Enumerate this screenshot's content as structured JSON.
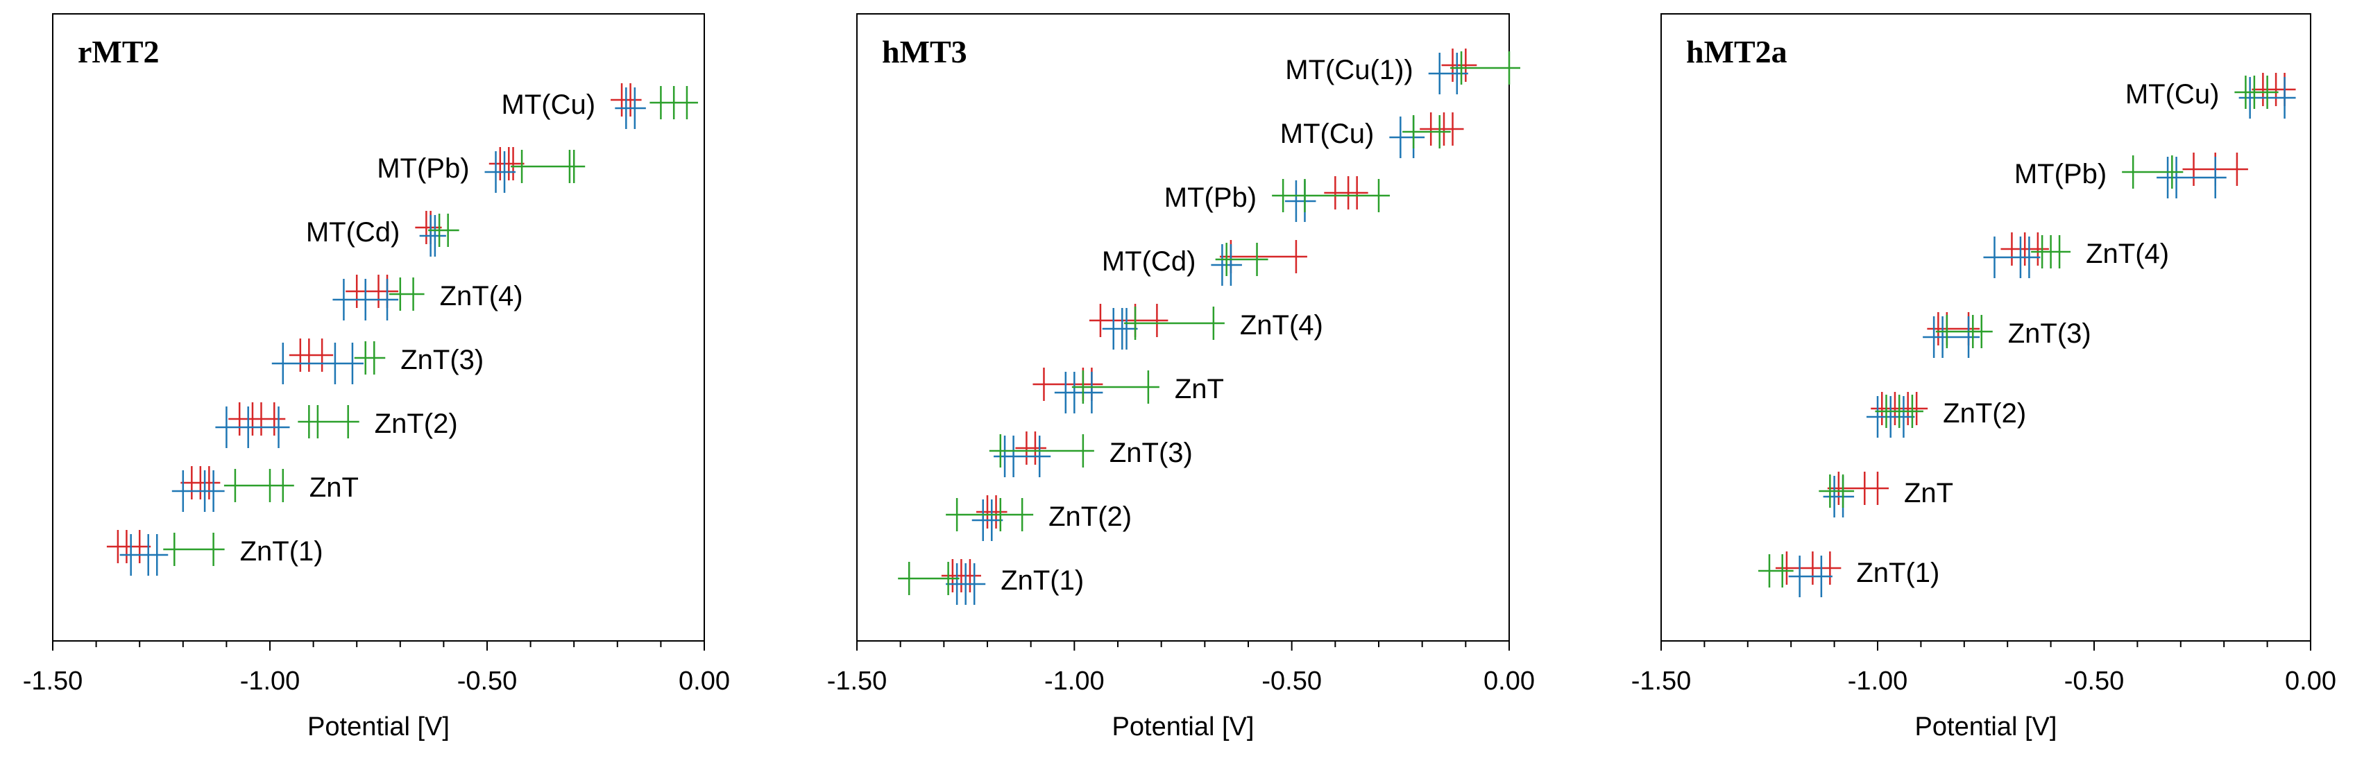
{
  "colors": {
    "red": "#d62728",
    "blue": "#1f77b4",
    "green": "#2ca02c",
    "frame": "#000000"
  },
  "chart_data": [
    {
      "type": "scatter",
      "title": "rMT2",
      "xlabel": "Potential [V]",
      "xlim": [
        -1.5,
        0
      ],
      "xticks": [
        "-1.50",
        "-1.00",
        "-0.50",
        "0.00"
      ],
      "legend": "none",
      "groups": [
        {
          "label": "MT(Cu)",
          "red": [
            -0.19,
            -0.17
          ],
          "blue": [
            -0.18,
            -0.16
          ],
          "green": [
            -0.1,
            -0.07,
            -0.04
          ]
        },
        {
          "label": "MT(Pb)",
          "red": [
            -0.47,
            -0.45,
            -0.44
          ],
          "blue": [
            -0.48,
            -0.46
          ],
          "green": [
            -0.42,
            -0.31,
            -0.3
          ]
        },
        {
          "label": "MT(Cd)",
          "red": [
            -0.64,
            -0.63
          ],
          "blue": [
            -0.63,
            -0.62
          ],
          "green": [
            -0.61,
            -0.59
          ]
        },
        {
          "label": "ZnT(4)",
          "red": [
            -0.8,
            -0.75,
            -0.73
          ],
          "blue": [
            -0.83,
            -0.78,
            -0.73
          ],
          "green": [
            -0.7,
            -0.67
          ]
        },
        {
          "label": "ZnT(3)",
          "red": [
            -0.93,
            -0.91,
            -0.88
          ],
          "blue": [
            -0.97,
            -0.85,
            -0.81
          ],
          "green": [
            -0.78,
            -0.76
          ]
        },
        {
          "label": "ZnT(2)",
          "red": [
            -1.07,
            -1.04,
            -1.02,
            -0.99
          ],
          "blue": [
            -1.1,
            -1.05,
            -0.98
          ],
          "green": [
            -0.91,
            -0.89,
            -0.82
          ]
        },
        {
          "label": "ZnT",
          "red": [
            -1.18,
            -1.16,
            -1.14
          ],
          "blue": [
            -1.2,
            -1.15,
            -1.13
          ],
          "green": [
            -1.08,
            -1.0,
            -0.97
          ]
        },
        {
          "label": "ZnT(1)",
          "red": [
            -1.35,
            -1.33,
            -1.3
          ],
          "blue": [
            -1.32,
            -1.28,
            -1.26
          ],
          "green": [
            -1.22,
            -1.13
          ]
        }
      ]
    },
    {
      "type": "scatter",
      "title": "hMT3",
      "xlabel": "Potential [V]",
      "xlim": [
        -1.5,
        0
      ],
      "xticks": [
        "-1.50",
        "-1.00",
        "-0.50",
        "0.00"
      ],
      "legend": "none",
      "groups": [
        {
          "label": "MT(Cu(1))",
          "red": [
            -0.13,
            -0.1
          ],
          "blue": [
            -0.16,
            -0.12
          ],
          "green": [
            -0.11,
            -0.0
          ]
        },
        {
          "label": "MT(Cu)",
          "red": [
            -0.18,
            -0.15,
            -0.13
          ],
          "blue": [
            -0.25,
            -0.22
          ],
          "green": [
            -0.22,
            -0.16
          ]
        },
        {
          "label": "MT(Pb)",
          "red": [
            -0.4,
            -0.37,
            -0.35
          ],
          "blue": [
            -0.49,
            -0.47
          ],
          "green": [
            -0.52,
            -0.47,
            -0.3
          ]
        },
        {
          "label": "MT(Cd)",
          "red": [
            -0.64,
            -0.49
          ],
          "blue": [
            -0.66,
            -0.64
          ],
          "green": [
            -0.65,
            -0.58
          ]
        },
        {
          "label": "ZnT(4)",
          "red": [
            -0.94,
            -0.86,
            -0.81
          ],
          "blue": [
            -0.91,
            -0.89,
            -0.88
          ],
          "green": [
            -0.86,
            -0.68
          ]
        },
        {
          "label": "ZnT",
          "red": [
            -1.07,
            -0.98,
            -0.96
          ],
          "blue": [
            -1.02,
            -1.0,
            -0.96
          ],
          "green": [
            -0.98,
            -0.83
          ]
        },
        {
          "label": "ZnT(3)",
          "red": [
            -1.11,
            -1.09
          ],
          "blue": [
            -1.16,
            -1.14,
            -1.08
          ],
          "green": [
            -1.17,
            -0.98
          ]
        },
        {
          "label": "ZnT(2)",
          "red": [
            -1.2,
            -1.18
          ],
          "blue": [
            -1.21,
            -1.19
          ],
          "green": [
            -1.27,
            -1.17,
            -1.12
          ]
        },
        {
          "label": "ZnT(1)",
          "red": [
            -1.28,
            -1.26,
            -1.24
          ],
          "blue": [
            -1.27,
            -1.25,
            -1.23
          ],
          "green": [
            -1.38,
            -1.29
          ]
        }
      ]
    },
    {
      "type": "scatter",
      "title": "hMT2a",
      "xlabel": "Potential [V]",
      "xlim": [
        -1.5,
        0
      ],
      "xticks": [
        "-1.50",
        "-1.00",
        "-0.50",
        "0.00"
      ],
      "legend": "none",
      "groups": [
        {
          "label": "MT(Cu)",
          "red": [
            -0.11,
            -0.08,
            -0.06
          ],
          "blue": [
            -0.14,
            -0.06
          ],
          "green": [
            -0.15,
            -0.13,
            -0.1
          ]
        },
        {
          "label": "MT(Pb)",
          "red": [
            -0.27,
            -0.22,
            -0.17
          ],
          "blue": [
            -0.33,
            -0.31,
            -0.22
          ],
          "green": [
            -0.41,
            -0.32
          ]
        },
        {
          "label": "ZnT(4)",
          "red": [
            -0.69,
            -0.66,
            -0.63
          ],
          "blue": [
            -0.73,
            -0.67,
            -0.65
          ],
          "green": [
            -0.62,
            -0.6,
            -0.58
          ]
        },
        {
          "label": "ZnT(3)",
          "red": [
            -0.86,
            -0.84,
            -0.79
          ],
          "blue": [
            -0.87,
            -0.85,
            -0.79
          ],
          "green": [
            -0.84,
            -0.78,
            -0.76
          ]
        },
        {
          "label": "ZnT(2)",
          "red": [
            -0.99,
            -0.96,
            -0.93,
            -0.91
          ],
          "blue": [
            -1.0,
            -0.97,
            -0.94
          ],
          "green": [
            -0.98,
            -0.95,
            -0.92
          ]
        },
        {
          "label": "ZnT",
          "red": [
            -1.09,
            -1.03,
            -1.0
          ],
          "blue": [
            -1.1,
            -1.08
          ],
          "green": [
            -1.11,
            -1.08
          ]
        },
        {
          "label": "ZnT(1)",
          "red": [
            -1.21,
            -1.15,
            -1.11
          ],
          "blue": [
            -1.18,
            -1.13
          ],
          "green": [
            -1.25,
            -1.22
          ]
        }
      ]
    }
  ]
}
